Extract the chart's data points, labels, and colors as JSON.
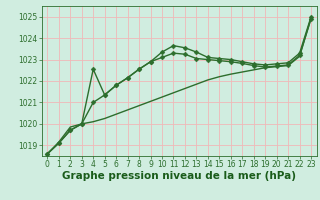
{
  "title": "Graphe pression niveau de la mer (hPa)",
  "bg_color": "#d0ede0",
  "grid_color": "#f0b8b8",
  "line_color": "#2d6e2d",
  "xlabel_color": "#1a5c1a",
  "ylim": [
    1018.5,
    1025.5
  ],
  "xlim": [
    -0.5,
    23.5
  ],
  "yticks": [
    1019,
    1020,
    1021,
    1022,
    1023,
    1024,
    1025
  ],
  "xticks": [
    0,
    1,
    2,
    3,
    4,
    5,
    6,
    7,
    8,
    9,
    10,
    11,
    12,
    13,
    14,
    15,
    16,
    17,
    18,
    19,
    20,
    21,
    22,
    23
  ],
  "high_y": [
    1018.6,
    1019.1,
    1019.7,
    1020.0,
    1022.55,
    1021.35,
    1021.8,
    1022.15,
    1022.55,
    1022.9,
    1023.35,
    1023.65,
    1023.55,
    1023.35,
    1023.1,
    1023.05,
    1023.0,
    1022.9,
    1022.8,
    1022.75,
    1022.8,
    1022.85,
    1023.3,
    1025.0
  ],
  "mid_y": [
    1018.6,
    1019.1,
    1019.7,
    1020.0,
    1021.0,
    1021.35,
    1021.8,
    1022.15,
    1022.55,
    1022.9,
    1023.1,
    1023.3,
    1023.25,
    1023.05,
    1023.0,
    1022.95,
    1022.9,
    1022.82,
    1022.72,
    1022.65,
    1022.7,
    1022.75,
    1023.2,
    1024.9
  ],
  "lin_y": [
    1018.6,
    1019.15,
    1019.85,
    1020.0,
    1020.1,
    1020.25,
    1020.45,
    1020.65,
    1020.85,
    1021.05,
    1021.25,
    1021.45,
    1021.65,
    1021.85,
    1022.05,
    1022.2,
    1022.32,
    1022.42,
    1022.52,
    1022.62,
    1022.67,
    1022.72,
    1023.15,
    1024.95
  ],
  "marker": "D",
  "markersize": 2.5,
  "linewidth": 1.0,
  "title_fontsize": 7.5,
  "tick_fontsize": 5.5
}
